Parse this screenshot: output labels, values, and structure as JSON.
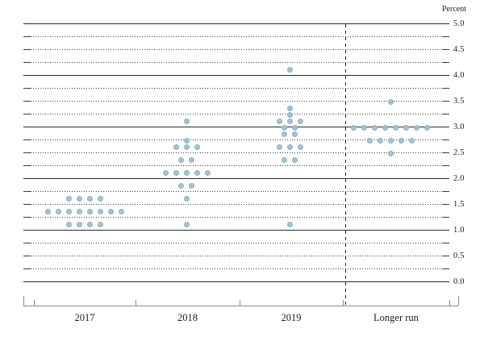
{
  "chart_data": {
    "type": "scatter",
    "subtype": "fomc-dot-plot",
    "ylabel": "Percent",
    "categories": [
      "2017",
      "2018",
      "2019",
      "Longer run"
    ],
    "y_axis": {
      "min": 0.0,
      "max": 5.0,
      "minor_step": 0.25,
      "label_step": 0.5,
      "tick_labels": [
        "5.0",
        "4.5",
        "4.0",
        "3.5",
        "3.0",
        "2.5",
        "2.0",
        "1.5",
        "1.0",
        "0.5",
        "0.0"
      ]
    },
    "grid": "solid lines at whole percents, dotted lines at quarter percents",
    "separator": {
      "style": "dashed",
      "before_category": "Longer run"
    },
    "dot_color": "#a6c2d2",
    "series": [
      {
        "category": "2017",
        "dots": [
          {
            "value": 1.625,
            "count": 4
          },
          {
            "value": 1.375,
            "count": 8
          },
          {
            "value": 1.125,
            "count": 4
          }
        ]
      },
      {
        "category": "2018",
        "dots": [
          {
            "value": 3.125,
            "count": 1
          },
          {
            "value": 2.75,
            "count": 1
          },
          {
            "value": 2.625,
            "count": 3
          },
          {
            "value": 2.375,
            "count": 2
          },
          {
            "value": 2.125,
            "count": 5
          },
          {
            "value": 1.875,
            "count": 2
          },
          {
            "value": 1.625,
            "count": 1
          },
          {
            "value": 1.125,
            "count": 1
          }
        ]
      },
      {
        "category": "2019",
        "dots": [
          {
            "value": 4.125,
            "count": 1
          },
          {
            "value": 3.375,
            "count": 1
          },
          {
            "value": 3.25,
            "count": 1
          },
          {
            "value": 3.125,
            "count": 3
          },
          {
            "value": 3.0,
            "count": 2
          },
          {
            "value": 2.875,
            "count": 2
          },
          {
            "value": 2.625,
            "count": 3
          },
          {
            "value": 2.375,
            "count": 2
          },
          {
            "value": 1.125,
            "count": 1
          }
        ]
      },
      {
        "category": "Longer run",
        "dots": [
          {
            "value": 3.5,
            "count": 1
          },
          {
            "value": 3.0,
            "count": 8
          },
          {
            "value": 2.75,
            "count": 5
          },
          {
            "value": 2.5,
            "count": 1
          }
        ]
      }
    ]
  }
}
